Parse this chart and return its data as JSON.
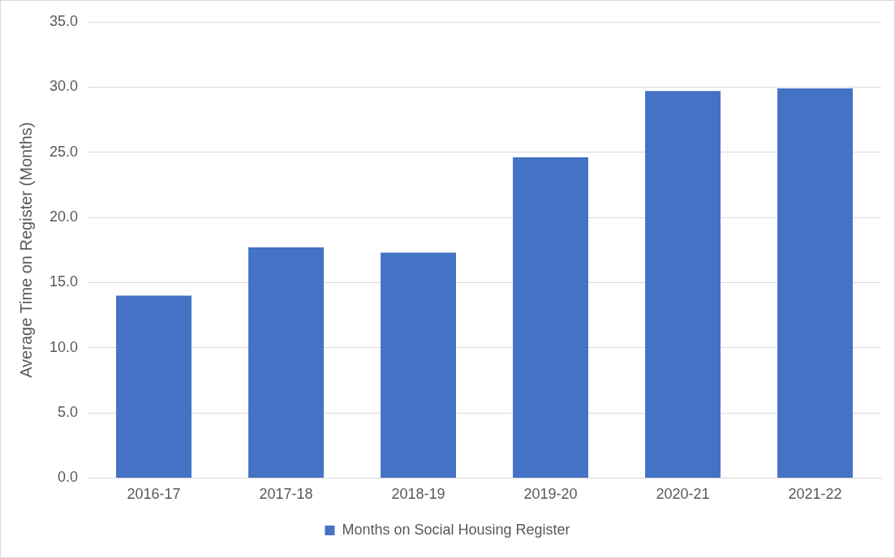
{
  "chart_data": {
    "type": "bar",
    "ylabel": "Average Time on Register (Months)",
    "categories": [
      "2016-17",
      "2017-18",
      "2018-19",
      "2019-20",
      "2020-21",
      "2021-22"
    ],
    "series": [
      {
        "name": "Months on Social Housing Register",
        "color": "#4472c4",
        "values": [
          14.0,
          17.7,
          17.3,
          24.6,
          29.7,
          29.9
        ]
      }
    ],
    "ylim": [
      0,
      35
    ],
    "yticks": [
      {
        "value": 0,
        "label": "0.0"
      },
      {
        "value": 5,
        "label": "5.0"
      },
      {
        "value": 10,
        "label": "10.0"
      },
      {
        "value": 15,
        "label": "15.0"
      },
      {
        "value": 20,
        "label": "20.0"
      },
      {
        "value": 25,
        "label": "25.0"
      },
      {
        "value": 30,
        "label": "30.0"
      },
      {
        "value": 35,
        "label": "35.0"
      }
    ],
    "grid": "y",
    "legend": "bottom"
  }
}
